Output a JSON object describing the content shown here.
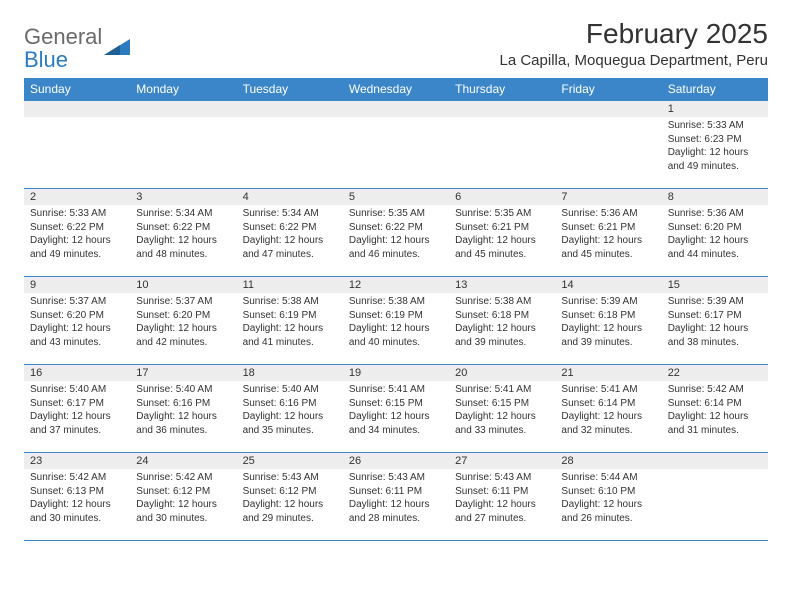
{
  "brand": {
    "part1": "General",
    "part2": "Blue"
  },
  "title": "February 2025",
  "location": "La Capilla, Moquegua Department, Peru",
  "colors": {
    "header_bg": "#3a86c8",
    "header_text": "#ffffff",
    "daynum_bg": "#ededed",
    "border": "#3a86c8",
    "text": "#333333",
    "logo_gray": "#6a6a6a",
    "logo_blue": "#2b7bbf",
    "page_bg": "#ffffff"
  },
  "weekday_labels": [
    "Sunday",
    "Monday",
    "Tuesday",
    "Wednesday",
    "Thursday",
    "Friday",
    "Saturday"
  ],
  "layout": {
    "first_weekday_index": 6,
    "days_in_month": 28,
    "columns": 7,
    "rows": 5
  },
  "days": {
    "1": {
      "sunrise": "5:33 AM",
      "sunset": "6:23 PM",
      "daylight": "12 hours and 49 minutes."
    },
    "2": {
      "sunrise": "5:33 AM",
      "sunset": "6:22 PM",
      "daylight": "12 hours and 49 minutes."
    },
    "3": {
      "sunrise": "5:34 AM",
      "sunset": "6:22 PM",
      "daylight": "12 hours and 48 minutes."
    },
    "4": {
      "sunrise": "5:34 AM",
      "sunset": "6:22 PM",
      "daylight": "12 hours and 47 minutes."
    },
    "5": {
      "sunrise": "5:35 AM",
      "sunset": "6:22 PM",
      "daylight": "12 hours and 46 minutes."
    },
    "6": {
      "sunrise": "5:35 AM",
      "sunset": "6:21 PM",
      "daylight": "12 hours and 45 minutes."
    },
    "7": {
      "sunrise": "5:36 AM",
      "sunset": "6:21 PM",
      "daylight": "12 hours and 45 minutes."
    },
    "8": {
      "sunrise": "5:36 AM",
      "sunset": "6:20 PM",
      "daylight": "12 hours and 44 minutes."
    },
    "9": {
      "sunrise": "5:37 AM",
      "sunset": "6:20 PM",
      "daylight": "12 hours and 43 minutes."
    },
    "10": {
      "sunrise": "5:37 AM",
      "sunset": "6:20 PM",
      "daylight": "12 hours and 42 minutes."
    },
    "11": {
      "sunrise": "5:38 AM",
      "sunset": "6:19 PM",
      "daylight": "12 hours and 41 minutes."
    },
    "12": {
      "sunrise": "5:38 AM",
      "sunset": "6:19 PM",
      "daylight": "12 hours and 40 minutes."
    },
    "13": {
      "sunrise": "5:38 AM",
      "sunset": "6:18 PM",
      "daylight": "12 hours and 39 minutes."
    },
    "14": {
      "sunrise": "5:39 AM",
      "sunset": "6:18 PM",
      "daylight": "12 hours and 39 minutes."
    },
    "15": {
      "sunrise": "5:39 AM",
      "sunset": "6:17 PM",
      "daylight": "12 hours and 38 minutes."
    },
    "16": {
      "sunrise": "5:40 AM",
      "sunset": "6:17 PM",
      "daylight": "12 hours and 37 minutes."
    },
    "17": {
      "sunrise": "5:40 AM",
      "sunset": "6:16 PM",
      "daylight": "12 hours and 36 minutes."
    },
    "18": {
      "sunrise": "5:40 AM",
      "sunset": "6:16 PM",
      "daylight": "12 hours and 35 minutes."
    },
    "19": {
      "sunrise": "5:41 AM",
      "sunset": "6:15 PM",
      "daylight": "12 hours and 34 minutes."
    },
    "20": {
      "sunrise": "5:41 AM",
      "sunset": "6:15 PM",
      "daylight": "12 hours and 33 minutes."
    },
    "21": {
      "sunrise": "5:41 AM",
      "sunset": "6:14 PM",
      "daylight": "12 hours and 32 minutes."
    },
    "22": {
      "sunrise": "5:42 AM",
      "sunset": "6:14 PM",
      "daylight": "12 hours and 31 minutes."
    },
    "23": {
      "sunrise": "5:42 AM",
      "sunset": "6:13 PM",
      "daylight": "12 hours and 30 minutes."
    },
    "24": {
      "sunrise": "5:42 AM",
      "sunset": "6:12 PM",
      "daylight": "12 hours and 30 minutes."
    },
    "25": {
      "sunrise": "5:43 AM",
      "sunset": "6:12 PM",
      "daylight": "12 hours and 29 minutes."
    },
    "26": {
      "sunrise": "5:43 AM",
      "sunset": "6:11 PM",
      "daylight": "12 hours and 28 minutes."
    },
    "27": {
      "sunrise": "5:43 AM",
      "sunset": "6:11 PM",
      "daylight": "12 hours and 27 minutes."
    },
    "28": {
      "sunrise": "5:44 AM",
      "sunset": "6:10 PM",
      "daylight": "12 hours and 26 minutes."
    }
  },
  "labels": {
    "sunrise": "Sunrise:",
    "sunset": "Sunset:",
    "daylight": "Daylight:"
  }
}
